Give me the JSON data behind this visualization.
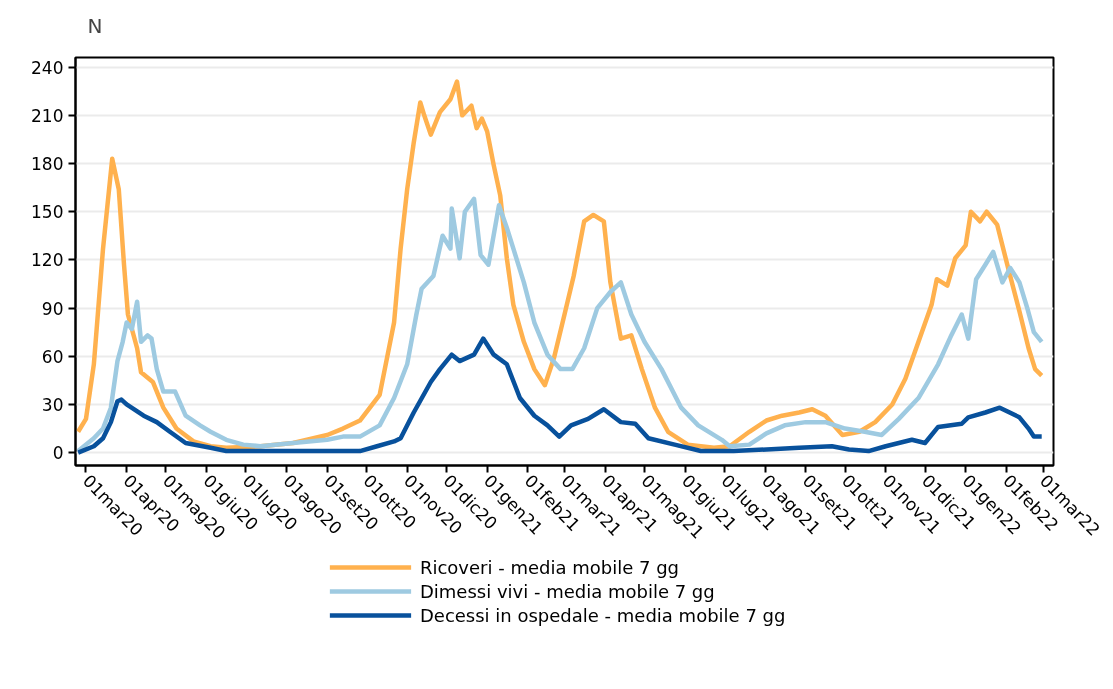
{
  "chart_data": {
    "type": "line",
    "ylabel": "N",
    "xlim": [
      "2020-02-22",
      "2022-03-09"
    ],
    "ylim": [
      -8,
      246
    ],
    "yticks": [
      0,
      30,
      60,
      90,
      120,
      150,
      180,
      210,
      240
    ],
    "xticks": [
      {
        "value": "2020-03-01",
        "label": "01mar20"
      },
      {
        "value": "2020-04-01",
        "label": "01apr20"
      },
      {
        "value": "2020-05-01",
        "label": "01mag20"
      },
      {
        "value": "2020-06-01",
        "label": "01giu20"
      },
      {
        "value": "2020-07-01",
        "label": "01lug20"
      },
      {
        "value": "2020-08-01",
        "label": "01ago20"
      },
      {
        "value": "2020-09-01",
        "label": "01set20"
      },
      {
        "value": "2020-10-01",
        "label": "01ott20"
      },
      {
        "value": "2020-11-01",
        "label": "01nov20"
      },
      {
        "value": "2020-12-01",
        "label": "01dic20"
      },
      {
        "value": "2021-01-01",
        "label": "01gen21"
      },
      {
        "value": "2021-02-01",
        "label": "01feb21"
      },
      {
        "value": "2021-03-01",
        "label": "01mar21"
      },
      {
        "value": "2021-04-01",
        "label": "01apr21"
      },
      {
        "value": "2021-05-01",
        "label": "01mag21"
      },
      {
        "value": "2021-06-01",
        "label": "01giu21"
      },
      {
        "value": "2021-07-01",
        "label": "01lug21"
      },
      {
        "value": "2021-08-01",
        "label": "01ago21"
      },
      {
        "value": "2021-09-01",
        "label": "01set21"
      },
      {
        "value": "2021-10-01",
        "label": "01ott21"
      },
      {
        "value": "2021-11-01",
        "label": "01nov21"
      },
      {
        "value": "2021-12-01",
        "label": "01dic21"
      },
      {
        "value": "2022-01-01",
        "label": "01gen22"
      },
      {
        "value": "2022-02-01",
        "label": "01feb22"
      },
      {
        "value": "2022-03-01",
        "label": "01mar22"
      }
    ],
    "grid": "y",
    "legend": "bottom",
    "line_style": "solid",
    "series": [
      {
        "name": "Ricoveri - media mobile 7 gg",
        "color": "#ffb14e",
        "x": [
          "2020-02-24",
          "2020-03-01",
          "2020-03-07",
          "2020-03-14",
          "2020-03-21",
          "2020-03-26",
          "2020-03-30",
          "2020-04-02",
          "2020-04-09",
          "2020-04-12",
          "2020-04-21",
          "2020-04-29",
          "2020-05-09",
          "2020-05-22",
          "2020-06-04",
          "2020-06-16",
          "2020-07-12",
          "2020-08-06",
          "2020-09-01",
          "2020-09-13",
          "2020-09-26",
          "2020-10-11",
          "2020-10-22",
          "2020-10-27",
          "2020-11-01",
          "2020-11-06",
          "2020-11-11",
          "2020-11-14",
          "2020-11-19",
          "2020-11-26",
          "2020-12-04",
          "2020-12-09",
          "2020-12-13",
          "2020-12-20",
          "2020-12-24",
          "2020-12-28",
          "2021-01-01",
          "2021-01-06",
          "2021-01-11",
          "2021-01-16",
          "2021-01-21",
          "2021-01-29",
          "2021-02-06",
          "2021-02-14",
          "2021-02-21",
          "2021-03-01",
          "2021-03-08",
          "2021-03-16",
          "2021-03-23",
          "2021-03-31",
          "2021-04-05",
          "2021-04-13",
          "2021-04-21",
          "2021-04-29",
          "2021-05-09",
          "2021-05-19",
          "2021-06-03",
          "2021-06-23",
          "2021-07-05",
          "2021-07-20",
          "2021-08-02",
          "2021-08-14",
          "2021-08-27",
          "2021-09-06",
          "2021-09-16",
          "2021-09-29",
          "2021-10-12",
          "2021-10-24",
          "2021-11-06",
          "2021-11-16",
          "2021-11-26",
          "2021-12-06",
          "2021-12-10",
          "2021-12-18",
          "2021-12-24",
          "2022-01-01",
          "2022-01-05",
          "2022-01-12",
          "2022-01-17",
          "2022-01-25",
          "2022-02-03",
          "2022-02-11",
          "2022-02-18",
          "2022-02-23",
          "2022-02-28"
        ],
        "values": [
          13,
          21,
          55,
          127,
          183,
          164,
          117,
          86,
          65,
          50,
          44,
          28,
          15,
          7,
          4,
          3,
          4,
          6,
          11,
          15,
          20,
          36,
          81,
          127,
          164,
          193,
          218,
          210,
          198,
          212,
          220,
          231,
          210,
          216,
          202,
          208,
          200,
          179,
          160,
          121,
          92,
          69,
          52,
          42,
          59,
          86,
          110,
          144,
          148,
          144,
          106,
          71,
          73,
          52,
          28,
          13,
          5,
          3,
          4,
          13,
          20,
          23,
          25,
          27,
          23,
          11,
          13,
          19,
          30,
          46,
          69,
          92,
          108,
          104,
          121,
          129,
          150,
          144,
          150,
          142,
          113,
          88,
          65,
          52,
          48
        ]
      },
      {
        "name": "Dimessi vivi - media mobile 7 gg",
        "color": "#9ecae1",
        "x": [
          "2020-02-24",
          "2020-03-07",
          "2020-03-14",
          "2020-03-20",
          "2020-03-25",
          "2020-03-29",
          "2020-04-01",
          "2020-04-05",
          "2020-04-09",
          "2020-04-12",
          "2020-04-17",
          "2020-04-20",
          "2020-04-24",
          "2020-04-29",
          "2020-05-08",
          "2020-05-16",
          "2020-05-27",
          "2020-06-04",
          "2020-06-16",
          "2020-06-29",
          "2020-07-12",
          "2020-08-06",
          "2020-09-01",
          "2020-09-13",
          "2020-09-26",
          "2020-10-11",
          "2020-10-22",
          "2020-11-01",
          "2020-11-08",
          "2020-11-12",
          "2020-11-21",
          "2020-11-28",
          "2020-12-04",
          "2020-12-05",
          "2020-12-11",
          "2020-12-15",
          "2020-12-22",
          "2020-12-27",
          "2021-01-02",
          "2021-01-10",
          "2021-01-16",
          "2021-01-21",
          "2021-01-29",
          "2021-02-06",
          "2021-02-16",
          "2021-02-26",
          "2021-03-07",
          "2021-03-16",
          "2021-03-26",
          "2021-04-05",
          "2021-04-13",
          "2021-04-21",
          "2021-05-01",
          "2021-05-14",
          "2021-05-29",
          "2021-06-11",
          "2021-06-29",
          "2021-07-05",
          "2021-07-20",
          "2021-08-02",
          "2021-08-16",
          "2021-09-01",
          "2021-09-16",
          "2021-10-01",
          "2021-10-16",
          "2021-10-29",
          "2021-11-11",
          "2021-11-26",
          "2021-12-11",
          "2021-12-21",
          "2021-12-29",
          "2022-01-03",
          "2022-01-09",
          "2022-01-16",
          "2022-01-22",
          "2022-01-29",
          "2022-02-04",
          "2022-02-11",
          "2022-02-17",
          "2022-02-22",
          "2022-02-28"
        ],
        "values": [
          1,
          9,
          15,
          28,
          57,
          69,
          81,
          77,
          94,
          69,
          73,
          71,
          52,
          38,
          38,
          23,
          17,
          13,
          8,
          5,
          4,
          6,
          8,
          10,
          10,
          17,
          34,
          55,
          86,
          102,
          110,
          135,
          127,
          152,
          121,
          150,
          158,
          123,
          117,
          154,
          140,
          127,
          106,
          81,
          61,
          52,
          52,
          65,
          90,
          100,
          106,
          86,
          69,
          52,
          28,
          17,
          8,
          4,
          5,
          12,
          17,
          19,
          19,
          15,
          13,
          11,
          21,
          34,
          55,
          73,
          86,
          71,
          108,
          117,
          125,
          106,
          115,
          106,
          90,
          75,
          69
        ]
      },
      {
        "name": "Decessi in ospedale - media mobile 7 gg",
        "color": "#08519c",
        "x": [
          "2020-02-24",
          "2020-03-07",
          "2020-03-14",
          "2020-03-20",
          "2020-03-25",
          "2020-03-28",
          "2020-04-01",
          "2020-04-14",
          "2020-04-24",
          "2020-05-04",
          "2020-05-16",
          "2020-06-04",
          "2020-06-16",
          "2020-07-12",
          "2020-08-06",
          "2020-09-01",
          "2020-09-26",
          "2020-10-09",
          "2020-10-22",
          "2020-10-27",
          "2020-11-06",
          "2020-11-19",
          "2020-11-26",
          "2020-12-05",
          "2020-12-11",
          "2020-12-22",
          "2020-12-29",
          "2021-01-06",
          "2021-01-16",
          "2021-01-26",
          "2021-02-06",
          "2021-02-16",
          "2021-02-25",
          "2021-03-06",
          "2021-03-19",
          "2021-03-31",
          "2021-04-13",
          "2021-04-24",
          "2021-05-04",
          "2021-05-24",
          "2021-06-13",
          "2021-06-29",
          "2021-07-08",
          "2021-08-27",
          "2021-09-21",
          "2021-10-04",
          "2021-10-19",
          "2021-11-01",
          "2021-11-21",
          "2021-12-01",
          "2021-12-11",
          "2021-12-29",
          "2022-01-03",
          "2022-01-16",
          "2022-01-27",
          "2022-02-11",
          "2022-02-18",
          "2022-02-22",
          "2022-02-28"
        ],
        "values": [
          0,
          4,
          9,
          19,
          32,
          33,
          30,
          23,
          19,
          13,
          6,
          3,
          1,
          1,
          1,
          1,
          1,
          4,
          7,
          9,
          25,
          44,
          52,
          61,
          57,
          61,
          71,
          61,
          55,
          34,
          23,
          17,
          10,
          17,
          21,
          27,
          19,
          18,
          9,
          5,
          1,
          1,
          1,
          3,
          4,
          2,
          1,
          4,
          8,
          6,
          16,
          18,
          22,
          25,
          28,
          22,
          15,
          10,
          10
        ]
      }
    ]
  }
}
